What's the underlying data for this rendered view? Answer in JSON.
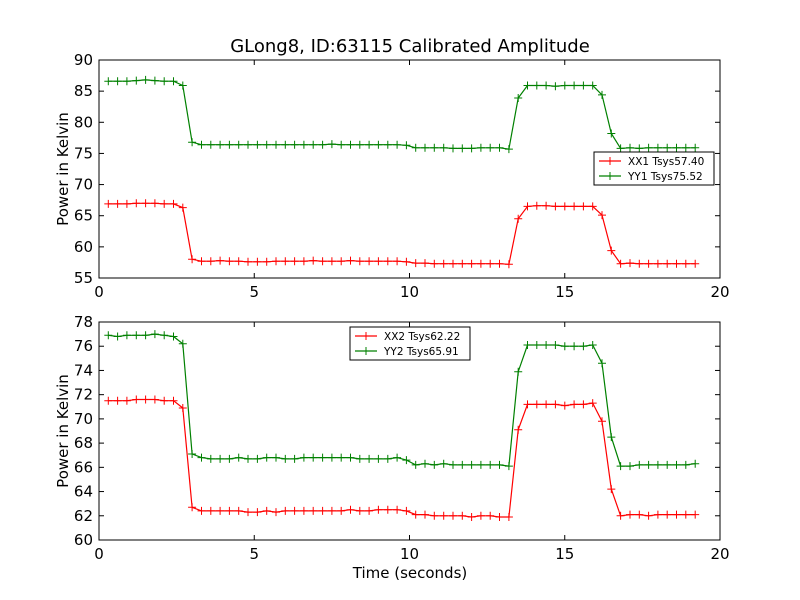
{
  "figure": {
    "title": "GLong8, ID:63115 Calibrated Amplitude",
    "xlabel": "Time (seconds)"
  },
  "chart_data": [
    {
      "type": "line",
      "title": "GLong8, ID:63115 Calibrated Amplitude",
      "xlabel": "",
      "ylabel": "Power in Kelvin",
      "xlim": [
        0,
        20
      ],
      "ylim": [
        55,
        90
      ],
      "xticks": [
        0,
        5,
        10,
        15,
        20
      ],
      "yticks": [
        55,
        60,
        65,
        70,
        75,
        80,
        85,
        90
      ],
      "grid": false,
      "legend": {
        "position": "right"
      },
      "x": [
        0.3,
        0.6,
        0.9,
        1.2,
        1.5,
        1.8,
        2.1,
        2.4,
        2.7,
        3.0,
        3.3,
        3.6,
        3.9,
        4.2,
        4.5,
        4.8,
        5.1,
        5.4,
        5.7,
        6.0,
        6.3,
        6.6,
        6.9,
        7.2,
        7.5,
        7.8,
        8.1,
        8.4,
        8.7,
        9.0,
        9.3,
        9.6,
        9.9,
        10.2,
        10.5,
        10.8,
        11.1,
        11.4,
        11.7,
        12.0,
        12.3,
        12.6,
        12.9,
        13.2,
        13.5,
        13.8,
        14.1,
        14.4,
        14.7,
        15.0,
        15.3,
        15.6,
        15.9,
        16.2,
        16.5,
        16.8,
        17.1,
        17.4,
        17.7,
        18.0,
        18.3,
        18.6,
        18.9,
        19.2
      ],
      "series": [
        {
          "name": "XX1 Tsys57.40",
          "color": "#ff0000",
          "values": [
            66.9,
            66.9,
            66.9,
            67.0,
            67.0,
            67.0,
            66.9,
            66.9,
            66.3,
            58.0,
            57.7,
            57.7,
            57.8,
            57.7,
            57.7,
            57.6,
            57.6,
            57.6,
            57.7,
            57.7,
            57.7,
            57.7,
            57.8,
            57.7,
            57.7,
            57.7,
            57.8,
            57.7,
            57.7,
            57.7,
            57.7,
            57.7,
            57.6,
            57.4,
            57.4,
            57.3,
            57.3,
            57.3,
            57.3,
            57.3,
            57.3,
            57.3,
            57.3,
            57.2,
            64.5,
            66.5,
            66.6,
            66.6,
            66.5,
            66.5,
            66.5,
            66.5,
            66.5,
            65.1,
            59.4,
            57.3,
            57.4,
            57.3,
            57.3,
            57.3,
            57.3,
            57.3,
            57.3,
            57.3
          ]
        },
        {
          "name": "YY1 Tsys75.52",
          "color": "#008000",
          "values": [
            86.6,
            86.6,
            86.6,
            86.7,
            86.8,
            86.7,
            86.6,
            86.6,
            85.9,
            76.8,
            76.4,
            76.4,
            76.4,
            76.4,
            76.4,
            76.4,
            76.4,
            76.4,
            76.4,
            76.4,
            76.4,
            76.4,
            76.4,
            76.4,
            76.5,
            76.4,
            76.4,
            76.4,
            76.4,
            76.4,
            76.4,
            76.4,
            76.3,
            75.9,
            75.9,
            75.9,
            75.9,
            75.8,
            75.8,
            75.8,
            75.9,
            75.9,
            75.9,
            75.7,
            83.9,
            85.9,
            85.9,
            85.9,
            85.8,
            85.9,
            85.9,
            85.9,
            85.9,
            84.4,
            78.2,
            75.8,
            75.9,
            75.8,
            75.9,
            75.9,
            75.9,
            75.9,
            75.9,
            75.9
          ]
        }
      ]
    },
    {
      "type": "line",
      "title": "",
      "xlabel": "Time (seconds)",
      "ylabel": "Power in Kelvin",
      "xlim": [
        0,
        20
      ],
      "ylim": [
        60,
        78
      ],
      "xticks": [
        0,
        5,
        10,
        15,
        20
      ],
      "yticks": [
        60,
        62,
        64,
        66,
        68,
        70,
        72,
        74,
        76,
        78
      ],
      "grid": false,
      "legend": {
        "position": "top-center"
      },
      "x": [
        0.3,
        0.6,
        0.9,
        1.2,
        1.5,
        1.8,
        2.1,
        2.4,
        2.7,
        3.0,
        3.3,
        3.6,
        3.9,
        4.2,
        4.5,
        4.8,
        5.1,
        5.4,
        5.7,
        6.0,
        6.3,
        6.6,
        6.9,
        7.2,
        7.5,
        7.8,
        8.1,
        8.4,
        8.7,
        9.0,
        9.3,
        9.6,
        9.9,
        10.2,
        10.5,
        10.8,
        11.1,
        11.4,
        11.7,
        12.0,
        12.3,
        12.6,
        12.9,
        13.2,
        13.5,
        13.8,
        14.1,
        14.4,
        14.7,
        15.0,
        15.3,
        15.6,
        15.9,
        16.2,
        16.5,
        16.8,
        17.1,
        17.4,
        17.7,
        18.0,
        18.3,
        18.6,
        18.9,
        19.2
      ],
      "series": [
        {
          "name": "XX2 Tsys62.22",
          "color": "#ff0000",
          "values": [
            71.5,
            71.5,
            71.5,
            71.6,
            71.6,
            71.6,
            71.5,
            71.5,
            70.9,
            62.7,
            62.4,
            62.4,
            62.4,
            62.4,
            62.4,
            62.3,
            62.3,
            62.4,
            62.3,
            62.4,
            62.4,
            62.4,
            62.4,
            62.4,
            62.4,
            62.4,
            62.5,
            62.4,
            62.4,
            62.5,
            62.5,
            62.5,
            62.4,
            62.1,
            62.1,
            62.0,
            62.0,
            62.0,
            62.0,
            61.9,
            62.0,
            62.0,
            61.9,
            61.9,
            69.1,
            71.2,
            71.2,
            71.2,
            71.2,
            71.1,
            71.2,
            71.2,
            71.3,
            69.8,
            64.2,
            62.0,
            62.1,
            62.1,
            62.0,
            62.1,
            62.1,
            62.1,
            62.1,
            62.1
          ]
        },
        {
          "name": "YY2 Tsys65.91",
          "color": "#008000",
          "values": [
            76.9,
            76.8,
            76.9,
            76.9,
            76.9,
            77.0,
            76.9,
            76.8,
            76.2,
            67.1,
            66.8,
            66.7,
            66.7,
            66.7,
            66.8,
            66.7,
            66.7,
            66.8,
            66.8,
            66.7,
            66.7,
            66.8,
            66.8,
            66.8,
            66.8,
            66.8,
            66.8,
            66.7,
            66.7,
            66.7,
            66.7,
            66.8,
            66.6,
            66.2,
            66.3,
            66.2,
            66.3,
            66.2,
            66.2,
            66.2,
            66.2,
            66.2,
            66.2,
            66.1,
            73.9,
            76.1,
            76.1,
            76.1,
            76.1,
            76.0,
            76.0,
            76.0,
            76.1,
            74.6,
            68.5,
            66.1,
            66.1,
            66.2,
            66.2,
            66.2,
            66.2,
            66.2,
            66.2,
            66.3
          ]
        }
      ]
    }
  ]
}
